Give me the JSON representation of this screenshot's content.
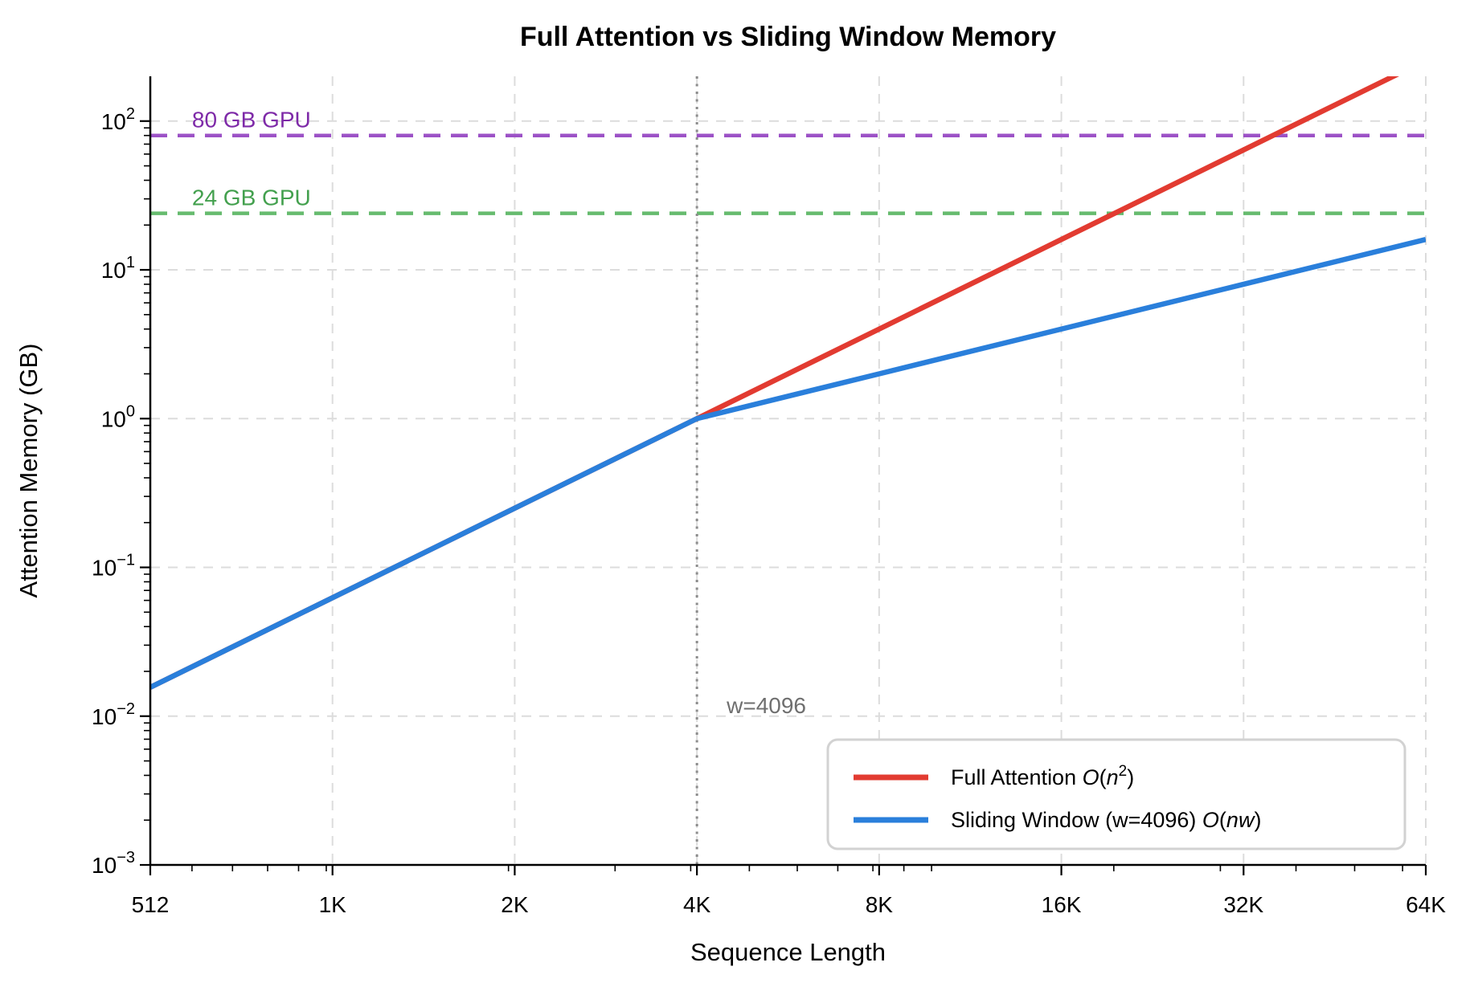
{
  "chart_data": {
    "type": "line",
    "title": "Full Attention vs Sliding Window Memory",
    "xlabel": "Sequence Length",
    "ylabel": "Attention Memory (GB)",
    "x_scale": "log2",
    "y_scale": "log10",
    "x_range": [
      512,
      65536
    ],
    "y_range": [
      0.001,
      200
    ],
    "grid": true,
    "x_ticks": [
      {
        "value": 512,
        "label": "512"
      },
      {
        "value": 1024,
        "label": "1K"
      },
      {
        "value": 2048,
        "label": "2K"
      },
      {
        "value": 4096,
        "label": "4K"
      },
      {
        "value": 8192,
        "label": "8K"
      },
      {
        "value": 16384,
        "label": "16K"
      },
      {
        "value": 32768,
        "label": "32K"
      },
      {
        "value": 65536,
        "label": "64K"
      }
    ],
    "y_ticks": [
      {
        "value": 100,
        "base": "10",
        "exp": "2"
      },
      {
        "value": 10,
        "base": "10",
        "exp": "1"
      },
      {
        "value": 1,
        "base": "10",
        "exp": "0"
      },
      {
        "value": 0.1,
        "base": "10",
        "exp": "−1"
      },
      {
        "value": 0.01,
        "base": "10",
        "exp": "−2"
      },
      {
        "value": 0.001,
        "base": "10",
        "exp": "−3"
      }
    ],
    "series": [
      {
        "id": "full-attention-line",
        "name": "Full Attention O(n2)",
        "color": "#e23b31",
        "x": [
          512,
          1024,
          2048,
          4096,
          8192,
          16384,
          32768,
          65536
        ],
        "y": [
          0.015625,
          0.0625,
          0.25,
          1,
          4,
          16,
          64,
          256
        ],
        "legend_segments": [
          {
            "t": "Full Attention "
          },
          {
            "t": "O",
            "i": true
          },
          {
            "t": "("
          },
          {
            "t": "n",
            "i": true
          },
          {
            "t": "2",
            "sup": true
          },
          {
            "t": ")"
          }
        ]
      },
      {
        "id": "sliding-window-line",
        "name": "Sliding Window (w=4096) O(nw)",
        "color": "#2a7fdb",
        "x": [
          512,
          1024,
          2048,
          4096,
          8192,
          16384,
          32768,
          65536
        ],
        "y": [
          0.015625,
          0.0625,
          0.25,
          1,
          2,
          4,
          8,
          16
        ],
        "legend_segments": [
          {
            "t": "Sliding Window (w=4096) "
          },
          {
            "t": "O",
            "i": true
          },
          {
            "t": "("
          },
          {
            "t": "n",
            "i": true
          },
          {
            "t": "w",
            "i": true
          },
          {
            "t": ")"
          }
        ]
      }
    ],
    "reference_lines": [
      {
        "id": "gpu-80gb",
        "orientation": "horizontal",
        "value": 80,
        "label": "80 GB GPU",
        "line_color": "#9c51c6",
        "text_color": "#7e2aa8",
        "style": "dashed",
        "label_x": 600
      },
      {
        "id": "gpu-24gb",
        "orientation": "horizontal",
        "value": 24,
        "label": "24 GB GPU",
        "line_color": "#66bb6e",
        "text_color": "#43a04e",
        "style": "dashed",
        "label_x": 600
      },
      {
        "id": "window-size",
        "orientation": "vertical",
        "value": 4096,
        "label": "w=4096",
        "line_color": "#8c8c8c",
        "text_color": "#6f6f6f",
        "style": "dotted",
        "label_y": 0.0105
      }
    ],
    "legend": {
      "position": "lower right"
    },
    "colors": {
      "grid": "#dcdcdc",
      "spine": "#000000",
      "tick_label": "#000000",
      "legend_border": "#d2d2d2",
      "legend_bg": "#ffffff"
    }
  }
}
